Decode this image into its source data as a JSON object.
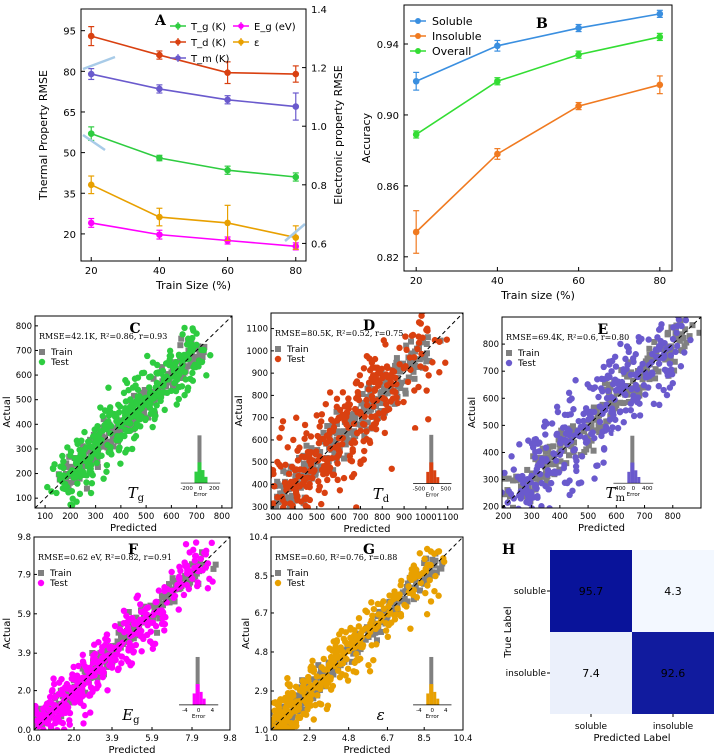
{
  "colors": {
    "tg": "#2ecc40",
    "td": "#d94010",
    "tm": "#6a5acd",
    "eg": "#ff00ff",
    "eps": "#e8a000",
    "soluble": "#3a8fe0",
    "insoluble": "#f07a20",
    "overall": "#33dd33",
    "train": "#808080",
    "cm_high": "#08129a",
    "cm_low": "#f4f9ff"
  },
  "chart_data": [
    {
      "id": "A",
      "type": "line",
      "panel_label": "A",
      "xlabel": "Train Size (%)",
      "ylabel": "Thermal Property RMSE",
      "y2label": "Electronic property RMSE",
      "x": [
        20,
        40,
        60,
        80
      ],
      "xlim": [
        17,
        83
      ],
      "ylim": [
        10,
        103
      ],
      "y2lim": [
        0.54,
        1.4
      ],
      "xticks": [
        20,
        40,
        60,
        80
      ],
      "yticks": [
        20,
        35,
        50,
        65,
        80,
        95
      ],
      "y2ticks": [
        0.6,
        0.8,
        1.0,
        1.2,
        1.4
      ],
      "series": [
        {
          "key": "tg",
          "label": "T_g (K)",
          "axis": "left",
          "values": [
            57,
            48,
            43.5,
            41
          ],
          "err": [
            2.5,
            1,
            1.5,
            1.5
          ]
        },
        {
          "key": "td",
          "label": "T_d (K)",
          "axis": "left",
          "values": [
            93,
            86,
            79.5,
            79
          ],
          "err": [
            3.5,
            1.5,
            4,
            3
          ]
        },
        {
          "key": "tm",
          "label": "T_m (K)",
          "axis": "left",
          "values": [
            79,
            73.5,
            69.5,
            67
          ],
          "err": [
            2,
            1.5,
            1.5,
            5
          ]
        },
        {
          "key": "eg",
          "label": "E_g (eV)",
          "axis": "right",
          "values": [
            0.67,
            0.63,
            0.61,
            0.59
          ],
          "err": [
            0.015,
            0.015,
            0.012,
            0.012
          ]
        },
        {
          "key": "eps",
          "label": "ε",
          "axis": "right",
          "values": [
            0.8,
            0.69,
            0.67,
            0.62
          ],
          "err": [
            0.03,
            0.03,
            0.06,
            0.04
          ]
        }
      ]
    },
    {
      "id": "B",
      "type": "line",
      "panel_label": "B",
      "xlabel": "Train size (%)",
      "ylabel": "Accuracy",
      "x": [
        20,
        40,
        60,
        80
      ],
      "xlim": [
        17,
        83
      ],
      "ylim": [
        0.812,
        0.962
      ],
      "xticks": [
        20,
        40,
        60,
        80
      ],
      "yticks": [
        "0.82",
        "0.86",
        "0.90",
        "0.94"
      ],
      "series": [
        {
          "key": "soluble",
          "label": "Soluble",
          "values": [
            0.919,
            0.939,
            0.949,
            0.957
          ],
          "err": [
            0.005,
            0.003,
            0.002,
            0.002
          ]
        },
        {
          "key": "insoluble",
          "label": "Insoluble",
          "values": [
            0.834,
            0.878,
            0.905,
            0.917
          ],
          "err": [
            0.012,
            0.003,
            0.002,
            0.005
          ]
        },
        {
          "key": "overall",
          "label": "Overall",
          "values": [
            0.889,
            0.919,
            0.934,
            0.944
          ],
          "err": [
            0.002,
            0.002,
            0.002,
            0.002
          ]
        }
      ]
    },
    {
      "id": "C",
      "type": "scatter",
      "panel_label": "C",
      "color_key": "tg",
      "annotation": "RMSE=42.1K, R²=0.86, r=0.93",
      "symbol_main": "T",
      "symbol_sub": "g",
      "xlabel": "Predicted",
      "ylabel": "Actual",
      "lim": [
        60,
        840
      ],
      "xticks": [
        100,
        200,
        300,
        400,
        500,
        600,
        700,
        800
      ],
      "yticks": [
        100,
        200,
        300,
        400,
        500,
        600,
        700,
        800
      ],
      "legend": [
        "Train",
        "Test"
      ],
      "inset_ticks": [
        "-200",
        "0",
        "200"
      ],
      "inset_label": "Error",
      "spread": 0.085,
      "seed": 11
    },
    {
      "id": "D",
      "type": "scatter",
      "panel_label": "D",
      "color_key": "td",
      "annotation": "RMSE=80.5K, R²=0.52, r=0.75",
      "symbol_main": "T",
      "symbol_sub": "d",
      "xlabel": "Predicted",
      "ylabel": "Actual",
      "lim": [
        290,
        1170
      ],
      "xticks": [
        300,
        400,
        500,
        600,
        700,
        800,
        900,
        1000,
        1100
      ],
      "yticks": [
        300,
        400,
        500,
        600,
        700,
        800,
        900,
        1000,
        1100
      ],
      "legend": [
        "Train",
        "Test"
      ],
      "inset_ticks": [
        "-500",
        "0",
        "500"
      ],
      "inset_label": "Error",
      "spread": 0.13,
      "seed": 23
    },
    {
      "id": "E",
      "type": "scatter",
      "panel_label": "E",
      "color_key": "tm",
      "annotation": "RMSE=69.4K, R²=0.6, r=0.80",
      "symbol_main": "T",
      "symbol_sub": "m",
      "xlabel": "Predicted",
      "ylabel": "Actual",
      "lim": [
        195,
        900
      ],
      "xticks": [
        200,
        300,
        400,
        500,
        600,
        700,
        800
      ],
      "yticks": [
        200,
        300,
        400,
        500,
        600,
        700,
        800
      ],
      "legend": [
        "Train",
        "Test"
      ],
      "inset_ticks": [
        "-400",
        "0",
        "400"
      ],
      "inset_label": "Error",
      "spread": 0.12,
      "seed": 37
    },
    {
      "id": "F",
      "type": "scatter",
      "panel_label": "F",
      "color_key": "eg",
      "annotation": "RMSE=0.62 eV, R²=0.82, r=0.91",
      "symbol_main": "E",
      "symbol_sub": "g",
      "xlabel": "Predicted",
      "ylabel": "Actual",
      "lim": [
        0,
        9.8
      ],
      "xticks": [
        "0.0",
        "2.0",
        "3.9",
        "5.9",
        "7.9",
        "9.8"
      ],
      "yticks": [
        "0.0",
        "2.0",
        "3.9",
        "5.9",
        "7.9",
        "9.8"
      ],
      "legend": [
        "Train",
        "Test"
      ],
      "inset_ticks": [
        "-4",
        "0",
        "4"
      ],
      "inset_label": "Error",
      "spread": 0.075,
      "seed": 51
    },
    {
      "id": "G",
      "type": "scatter",
      "panel_label": "G",
      "color_key": "eps",
      "annotation": "RMSE=0.60, R²=0.76, r=0.88",
      "symbol_main": "ε",
      "symbol_sub": "",
      "xlabel": "Predicted",
      "ylabel": "Actual",
      "lim": [
        1.0,
        10.4
      ],
      "xticks": [
        "1.0",
        "2.9",
        "4.8",
        "6.7",
        "8.5",
        "10.4"
      ],
      "yticks": [
        "1.0",
        "2.9",
        "4.8",
        "6.7",
        "8.5",
        "10.4"
      ],
      "legend": [
        "Train",
        "Test"
      ],
      "inset_ticks": [
        "-4",
        "0",
        "4"
      ],
      "inset_label": "Error",
      "spread": 0.07,
      "seed": 67
    },
    {
      "id": "H",
      "type": "heatmap",
      "panel_label": "H",
      "xlabel": "Predicted Label",
      "ylabel": "True Label",
      "labels": [
        "soluble",
        "insoluble"
      ],
      "matrix": [
        [
          95.7,
          4.3
        ],
        [
          7.4,
          92.6
        ]
      ],
      "cell_text": [
        [
          "95.7",
          "4.3"
        ],
        [
          "7.4",
          "92.6"
        ]
      ]
    }
  ]
}
